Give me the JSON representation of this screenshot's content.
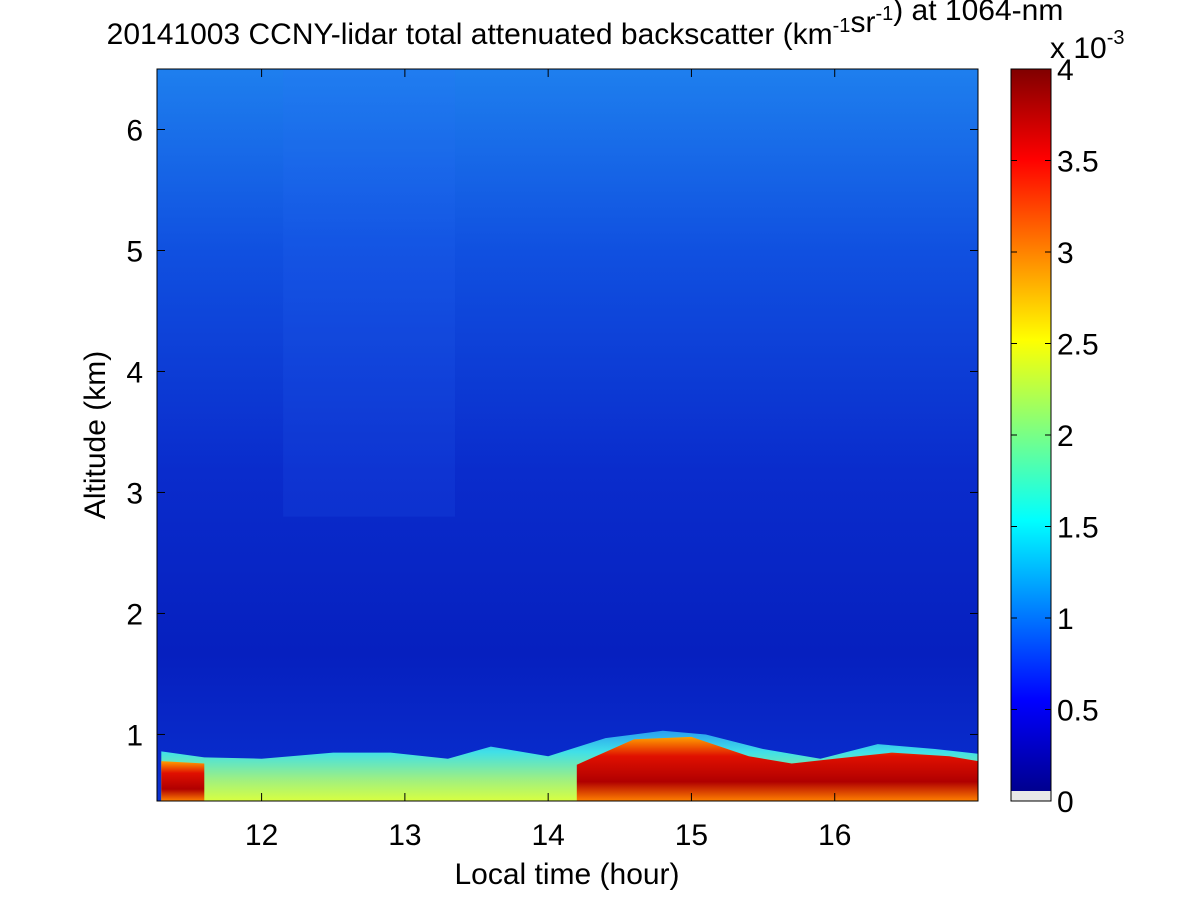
{
  "chart_data": {
    "type": "heatmap",
    "title": {
      "prefix": "20141003 CCNY-lidar total attenuated backscatter (km",
      "exp1": "-1",
      "mid": "sr",
      "exp2": "-1",
      "suffix": ") at 1064-nm"
    },
    "xlabel": "Local time (hour)",
    "ylabel": "Altitude (km)",
    "xlim": [
      11.27,
      17.0
    ],
    "ylim": [
      0.45,
      6.5
    ],
    "x_ticks": [
      12,
      13,
      14,
      15,
      16
    ],
    "y_ticks": [
      1,
      2,
      3,
      4,
      5,
      6
    ],
    "grid": false,
    "colormap": "jet",
    "colorbar": {
      "range": [
        0,
        4
      ],
      "ticks": [
        "0",
        "0.5",
        "1",
        "1.5",
        "2",
        "2.5",
        "3",
        "3.5",
        "4"
      ],
      "tick_values": [
        0,
        0.5,
        1,
        1.5,
        2,
        2.5,
        3,
        3.5,
        4
      ],
      "multiplier_base": "x 10",
      "multiplier_exp": "-3"
    },
    "aerosol_layer_top_km": {
      "x": [
        11.3,
        11.6,
        12.0,
        12.5,
        12.9,
        13.3,
        13.6,
        14.0,
        14.4,
        14.8,
        15.1,
        15.5,
        15.9,
        16.3,
        16.7,
        17.0
      ],
      "y": [
        0.86,
        0.81,
        0.8,
        0.85,
        0.85,
        0.8,
        0.9,
        0.82,
        0.97,
        1.03,
        1.0,
        0.88,
        0.8,
        0.92,
        0.88,
        0.84
      ]
    },
    "enhanced_layer_top_km": {
      "x": [
        11.3,
        11.6,
        14.2,
        14.6,
        15.0,
        15.4,
        15.7,
        16.0,
        16.4,
        16.8,
        17.0
      ],
      "y": [
        0.78,
        0.76,
        0.75,
        0.96,
        0.98,
        0.82,
        0.76,
        0.8,
        0.85,
        0.82,
        0.78
      ]
    }
  }
}
